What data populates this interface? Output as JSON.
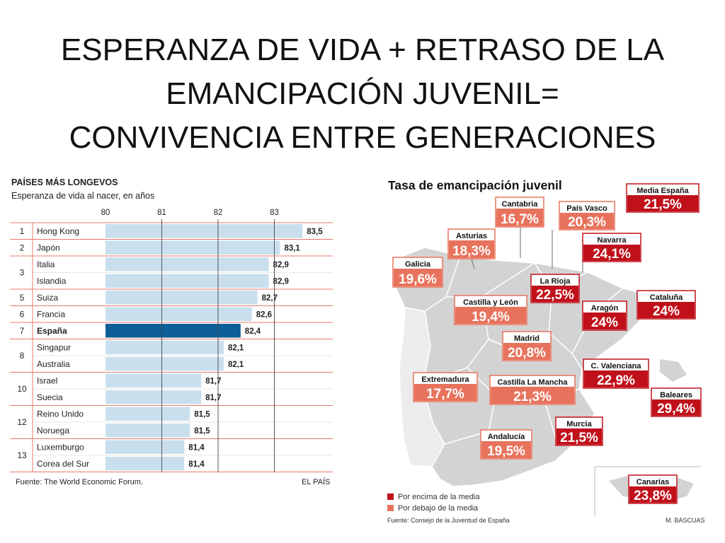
{
  "slide": {
    "title_lines": [
      "ESPERANZA DE VIDA + RETRASO DE LA",
      "EMANCIPACIÓN JUVENIL=",
      "CONVIVENCIA ENTRE GENERACIONES"
    ]
  },
  "chart_data": [
    {
      "type": "bar",
      "orientation": "horizontal",
      "title": "PAÍSES MÁS LONGEVOS",
      "subtitle": "Esperanza de vida al nacer, en años",
      "xlim": [
        80,
        84
      ],
      "ticks": [
        80,
        81,
        82,
        83
      ],
      "categories": [
        "Hong Kong",
        "Japón",
        "Italia",
        "Islandia",
        "Suiza",
        "Francia",
        "España",
        "Singapur",
        "Australia",
        "Israel",
        "Suecia",
        "Reino Unido",
        "Noruega",
        "Luxemburgo",
        "Corea del Sur"
      ],
      "values": [
        83.5,
        83.1,
        82.9,
        82.9,
        82.7,
        82.6,
        82.4,
        82.1,
        82.1,
        81.7,
        81.7,
        81.5,
        81.5,
        81.4,
        81.4
      ],
      "value_labels": [
        "83,5",
        "83,1",
        "82,9",
        "82,9",
        "82,7",
        "82,6",
        "82,4",
        "82,1",
        "82,1",
        "81,7",
        "81,7",
        "81,5",
        "81,5",
        "81,4",
        "81,4"
      ],
      "highlight": "España",
      "ranks": [
        {
          "label": "1",
          "rows": 1
        },
        {
          "label": "2",
          "rows": 1
        },
        {
          "label": "3",
          "rows": 2
        },
        {
          "label": "5",
          "rows": 1
        },
        {
          "label": "6",
          "rows": 1
        },
        {
          "label": "7",
          "rows": 1
        },
        {
          "label": "8",
          "rows": 2
        },
        {
          "label": "10",
          "rows": 2
        },
        {
          "label": "12",
          "rows": 2
        },
        {
          "label": "13",
          "rows": 2
        }
      ],
      "source": "Fuente: The World Economic Forum.",
      "credit": "EL PAÍS",
      "colors": {
        "bar": "#c9dfee",
        "highlight": "#0b5e97",
        "rule": "#e8796b"
      }
    },
    {
      "type": "map",
      "title": "Tasa de emancipación juvenil",
      "national": {
        "name": "Media España",
        "value": "21,5%"
      },
      "regions": [
        {
          "name": "Cantabria",
          "value": "16,7%",
          "category": "below"
        },
        {
          "name": "País Vasco",
          "value": "20,3%",
          "category": "below"
        },
        {
          "name": "Asturias",
          "value": "18,3%",
          "category": "below"
        },
        {
          "name": "Navarra",
          "value": "24,1%",
          "category": "above"
        },
        {
          "name": "Galicia",
          "value": "19,6%",
          "category": "below"
        },
        {
          "name": "La Rioja",
          "value": "22,5%",
          "category": "above"
        },
        {
          "name": "Cataluña",
          "value": "24%",
          "category": "above"
        },
        {
          "name": "Castilla y León",
          "value": "19,4%",
          "category": "below"
        },
        {
          "name": "Aragón",
          "value": "24%",
          "category": "above"
        },
        {
          "name": "Madrid",
          "value": "20,8%",
          "category": "below"
        },
        {
          "name": "C. Valenciana",
          "value": "22,9%",
          "category": "above"
        },
        {
          "name": "Extremadura",
          "value": "17,7%",
          "category": "below"
        },
        {
          "name": "Castilla La Mancha",
          "value": "21,3%",
          "category": "below"
        },
        {
          "name": "Baleares",
          "value": "29,4%",
          "category": "above"
        },
        {
          "name": "Murcia",
          "value": "21,5%",
          "category": "above"
        },
        {
          "name": "Andalucía",
          "value": "19,5%",
          "category": "below"
        },
        {
          "name": "Canarias",
          "value": "23,8%",
          "category": "above"
        }
      ],
      "legend": [
        {
          "key": "above",
          "label": "Por encima de la media"
        },
        {
          "key": "below",
          "label": "Por debajo de la media"
        }
      ],
      "source": "Fuente: Consejo de la Juventud de España",
      "credit": "M. BASCUAS",
      "colors": {
        "above": "#c0111b",
        "below": "#e8735d",
        "land": "#d3d3d3",
        "border": "#ffffff"
      }
    }
  ]
}
